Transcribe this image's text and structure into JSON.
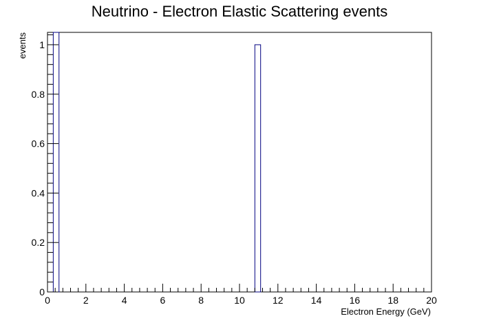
{
  "chart_data": {
    "type": "bar",
    "title": "Neutrino - Electron Elastic Scattering events",
    "xlabel": "Electron Energy (GeV)",
    "ylabel": "events",
    "xlim": [
      0,
      20
    ],
    "ylim": [
      0,
      1.05
    ],
    "x_tick_labels": [
      "0",
      "2",
      "4",
      "6",
      "8",
      "10",
      "12",
      "14",
      "16",
      "18",
      "20"
    ],
    "y_tick_labels": [
      "0",
      "0.2",
      "0.4",
      "0.6",
      "0.8",
      "1"
    ],
    "bin_width": 0.3,
    "bins": [
      {
        "x_low": 0.3,
        "x_high": 0.6,
        "value": 1.05
      },
      {
        "x_low": 10.8,
        "x_high": 11.1,
        "value": 1.0
      }
    ],
    "grid": false,
    "legend": "none",
    "line_color": "#000080",
    "frame_color": "#000000"
  }
}
